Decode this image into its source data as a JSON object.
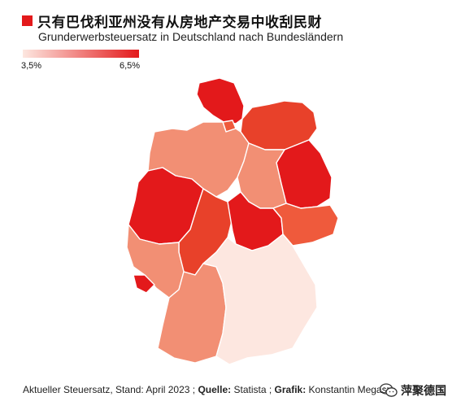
{
  "header": {
    "title": "只有巴伐利亚州没有从房地产交易中收刮民财",
    "subtitle": "Grunderwerbsteuersatz in Deutschland nach Bundesländern",
    "accent_color": "#e3191b"
  },
  "legend": {
    "min_label": "3,5%",
    "max_label": "6,5%",
    "color_low": "#fde7e0",
    "color_high": "#e3191b"
  },
  "map": {
    "states": [
      {
        "name": "Schleswig-Holstein",
        "rate": 6.5,
        "color": "#e3191b"
      },
      {
        "name": "Hamburg",
        "rate": 5.5,
        "color": "#ef5a3c"
      },
      {
        "name": "Mecklenburg-Vorpommern",
        "rate": 6.0,
        "color": "#e8412a"
      },
      {
        "name": "Bremen",
        "rate": 5.0,
        "color": "#f28f74"
      },
      {
        "name": "Niedersachsen",
        "rate": 5.0,
        "color": "#f28f74"
      },
      {
        "name": "Berlin",
        "rate": 6.0,
        "color": "#e8412a"
      },
      {
        "name": "Brandenburg",
        "rate": 6.5,
        "color": "#e3191b"
      },
      {
        "name": "Sachsen-Anhalt",
        "rate": 5.0,
        "color": "#f28f74"
      },
      {
        "name": "Nordrhein-Westfalen",
        "rate": 6.5,
        "color": "#e3191b"
      },
      {
        "name": "Hessen",
        "rate": 6.0,
        "color": "#e8412a"
      },
      {
        "name": "Thüringen",
        "rate": 6.5,
        "color": "#e3191b"
      },
      {
        "name": "Sachsen",
        "rate": 5.5,
        "color": "#ef5a3c"
      },
      {
        "name": "Rheinland-Pfalz",
        "rate": 5.0,
        "color": "#f28f74"
      },
      {
        "name": "Saarland",
        "rate": 6.5,
        "color": "#e3191b"
      },
      {
        "name": "Baden-Württemberg",
        "rate": 5.0,
        "color": "#f28f74"
      },
      {
        "name": "Bayern",
        "rate": 3.5,
        "color": "#fde7e0"
      }
    ]
  },
  "footer": {
    "prefix": "Aktueller Steuersatz, Stand: April 2023 ; ",
    "source_label": "Quelle:",
    "source_value": " Statista ; ",
    "credit_label": "Grafik:",
    "credit_value": " Konstantin Megas"
  },
  "watermark": {
    "text": "萍聚德国",
    "icon": "wechat-icon"
  }
}
